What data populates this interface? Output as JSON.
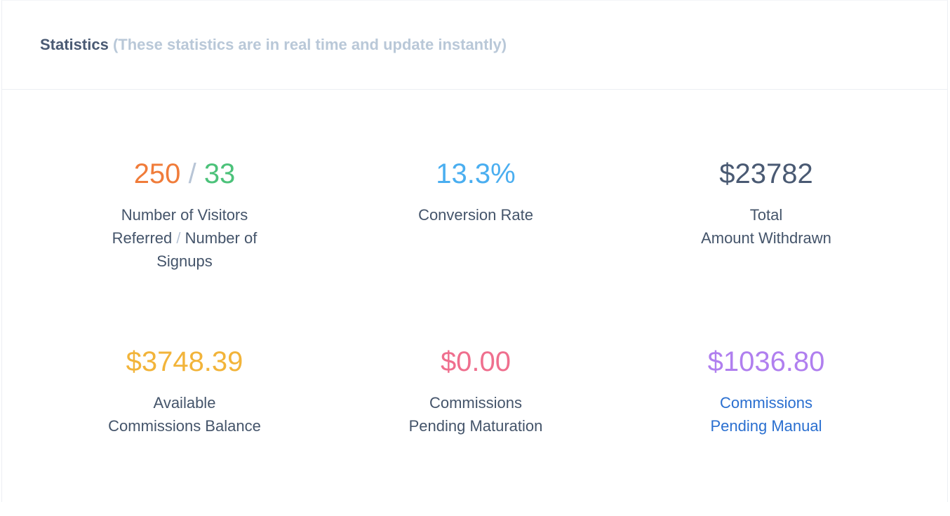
{
  "header": {
    "title": "Statistics",
    "subtitle": "(These statistics are in real time and update instantly)"
  },
  "stats": [
    {
      "value_parts": [
        "250",
        "/",
        "33"
      ],
      "label_parts": [
        "Number of Visitors Referred",
        "/",
        "Number of Signups"
      ]
    },
    {
      "value": "13.3%",
      "label_lines": [
        "Conversion Rate"
      ]
    },
    {
      "value": "$23782",
      "label_lines": [
        "Total",
        "Amount Withdrawn"
      ]
    },
    {
      "value": "$3748.39",
      "label_lines": [
        "Available",
        "Commissions Balance"
      ]
    },
    {
      "value": "$0.00",
      "label_lines": [
        "Commissions",
        "Pending Maturation"
      ]
    },
    {
      "value": "$1036.80",
      "label_lines": [
        "Commissions",
        "Pending Manual"
      ]
    }
  ]
}
